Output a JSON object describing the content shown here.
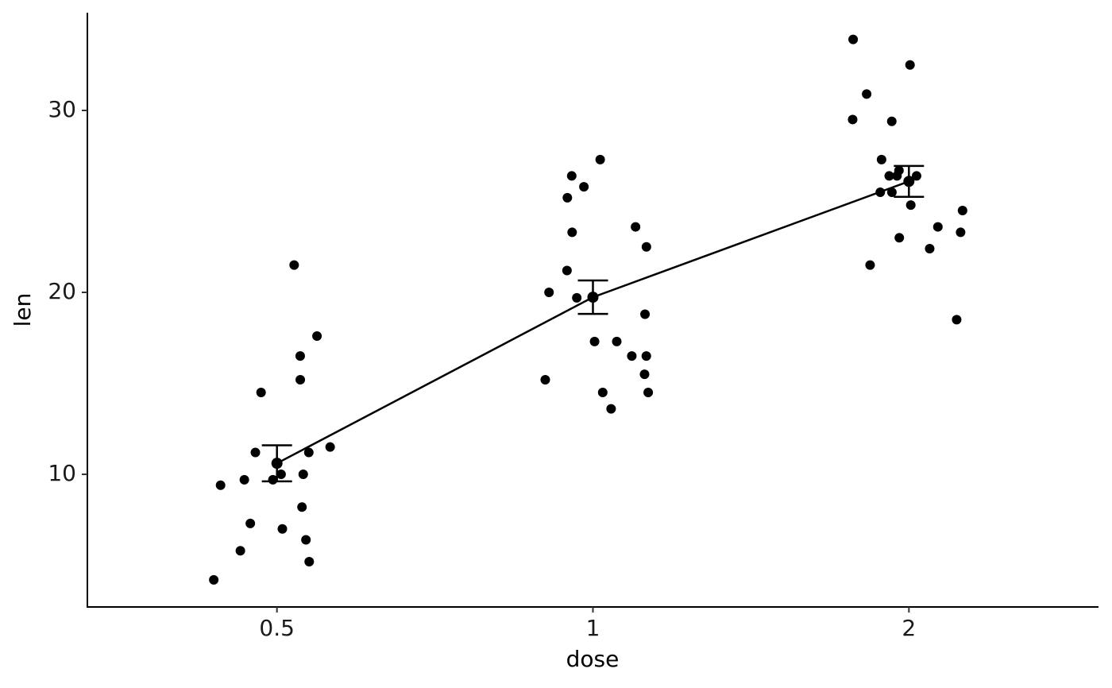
{
  "chart_data": {
    "type": "scatter",
    "xlabel": "dose",
    "ylabel": "len",
    "categories": [
      "0.5",
      "1",
      "2"
    ],
    "points": [
      [
        4.2,
        11.5,
        7.3,
        5.8,
        6.4,
        10,
        11.2,
        11.2,
        5.2,
        7,
        15.2,
        21.5,
        17.6,
        9.7,
        14.5,
        10,
        8.2,
        9.4,
        16.5,
        9.7
      ],
      [
        16.5,
        16.5,
        15.2,
        17.3,
        22.5,
        17.3,
        13.6,
        14.5,
        18.8,
        15.5,
        19.7,
        23.3,
        23.6,
        26.4,
        20,
        25.2,
        25.8,
        21.2,
        14.5,
        27.3
      ],
      [
        23.6,
        18.5,
        33.9,
        25.5,
        26.4,
        32.5,
        26.7,
        21.5,
        23.3,
        29.5,
        25.5,
        26.4,
        22.4,
        24.5,
        24.8,
        30.9,
        26.4,
        27.3,
        29.4,
        23
      ]
    ],
    "means": [
      10.605,
      19.735,
      26.1
    ],
    "errors": [
      0.99,
      0.92,
      0.85
    ],
    "color": "#000000",
    "ylim": [
      2.71,
      35.37
    ],
    "yticks": [
      10,
      20,
      30
    ],
    "grid": false
  }
}
